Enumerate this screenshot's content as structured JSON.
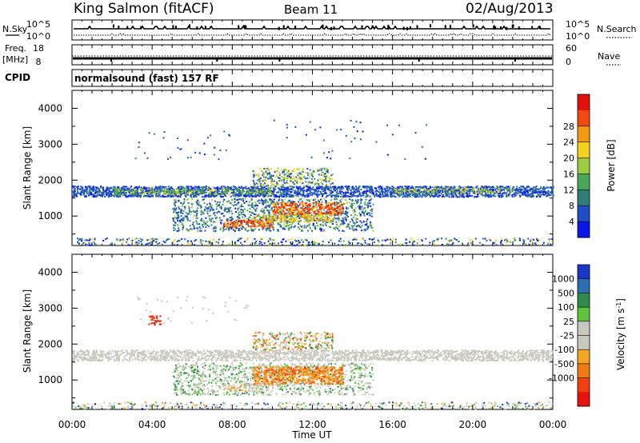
{
  "header": {
    "station": "King Salmon (fitACF)",
    "beam": "Beam 11",
    "date": "02/Aug/2013",
    "cpid_label": "CPID",
    "cpid_value": "normalsound (fast) 157 RF"
  },
  "chart_data": [
    {
      "type": "line",
      "name": "noise-panel",
      "left_label": "N.Sky",
      "right_label": "N.Search",
      "left_ticks": [
        "10^5",
        "10^0"
      ],
      "right_ticks": [
        "10^5",
        "10^0"
      ]
    },
    {
      "type": "line",
      "name": "frequency-panel",
      "left_label_1": "Freq.",
      "left_label_2": "[MHz]",
      "right_label": "Nave",
      "left_ticks": [
        "18",
        "8"
      ],
      "right_ticks": [
        "60",
        "0"
      ]
    },
    {
      "type": "heatmap",
      "name": "power-panel",
      "ylabel": "Slant Range [km]",
      "yticks": [
        "1000",
        "2000",
        "3000",
        "4000"
      ],
      "ylim": [
        180,
        4500
      ],
      "xlim": [
        0,
        24
      ],
      "colorbar_label": "Power [dB]",
      "colorbar_ticks": [
        "4",
        "8",
        "12",
        "16",
        "20",
        "24",
        "28"
      ],
      "colors": [
        "#0b16ea",
        "#1e4fc8",
        "#2f7e78",
        "#4aa65a",
        "#9ccc3c",
        "#f2d21c",
        "#f39a14",
        "#f04a0e",
        "#e2110e"
      ]
    },
    {
      "type": "heatmap",
      "name": "velocity-panel",
      "ylabel": "Slant Range [km]",
      "yticks": [
        "1000",
        "2000",
        "3000",
        "4000"
      ],
      "ylim": [
        180,
        4500
      ],
      "xlim": [
        0,
        24
      ],
      "xlabel": "Time UT",
      "xticks": [
        "00:00",
        "04:00",
        "08:00",
        "12:00",
        "16:00",
        "20:00",
        "00:00"
      ],
      "colorbar_label": "Velocity [m s",
      "colorbar_label_superscript": "-1",
      "colorbar_label_end": "]",
      "colorbar_ticks": [
        "1000",
        "500",
        "100",
        "25",
        "-25",
        "-100",
        "-500",
        "-1000"
      ],
      "colors": [
        "#1a38c8",
        "#2d6fb5",
        "#2f8a4c",
        "#5ec33a",
        "#c8c8c0",
        "#c8c8c0",
        "#f5a623",
        "#f07a12",
        "#f0420e",
        "#e8130e"
      ]
    }
  ]
}
